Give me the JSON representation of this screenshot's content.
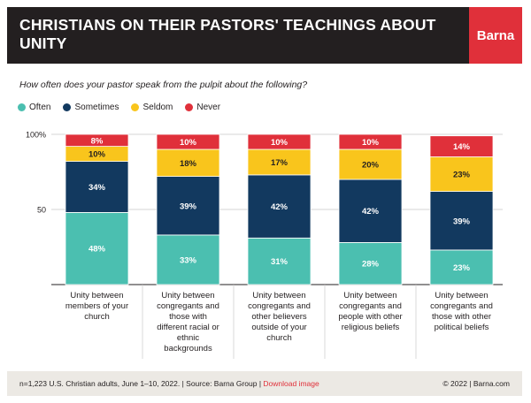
{
  "header": {
    "title": "CHRISTIANS ON THEIR PASTORS' TEACHINGS ABOUT UNITY",
    "brand": "Barna"
  },
  "subtitle": "How often does your pastor speak from the pulpit about the following?",
  "footer": {
    "source": "n=1,223 U.S. Christian adults, June 1–10, 2022. | Source: Barna Group |",
    "download": "Download image",
    "copyright": "© 2022 |  Barna.com"
  },
  "colors": {
    "Often": "#4bbfb0",
    "Sometimes": "#12395f",
    "Seldom": "#f9c51c",
    "Never": "#e0303a"
  },
  "chart_data": {
    "type": "bar",
    "stacked": true,
    "title": "How often does your pastor speak from the pulpit about the following?",
    "categories": [
      "Unity between members of your church",
      "Unity between congregants and those with different racial or ethnic backgrounds",
      "Unity between congregants and other believers outside of your church",
      "Unity between congregants and people with other religious beliefs",
      "Unity between congregants and those with other political beliefs"
    ],
    "category_lines": [
      [
        "Unity between",
        "members of your",
        "church"
      ],
      [
        "Unity between",
        "congregants and",
        "those with",
        "different racial or",
        "ethnic",
        "backgrounds"
      ],
      [
        "Unity between",
        "congregants and",
        "other believers",
        "outside of your",
        "church"
      ],
      [
        "Unity between",
        "congregants and",
        "people with other",
        "religious beliefs"
      ],
      [
        "Unity between",
        "congregants and",
        "those with other",
        "political beliefs"
      ]
    ],
    "series": [
      {
        "name": "Often",
        "values": [
          48,
          33,
          31,
          28,
          23
        ]
      },
      {
        "name": "Sometimes",
        "values": [
          34,
          39,
          42,
          42,
          39
        ]
      },
      {
        "name": "Seldom",
        "values": [
          10,
          18,
          17,
          20,
          23
        ]
      },
      {
        "name": "Never",
        "values": [
          8,
          10,
          10,
          10,
          14
        ]
      }
    ],
    "ylim": [
      0,
      100
    ],
    "yticks": [
      {
        "value": 100,
        "label": "100%"
      },
      {
        "value": 50,
        "label": "50"
      }
    ],
    "value_suffix": "%",
    "legend": "top-left"
  }
}
